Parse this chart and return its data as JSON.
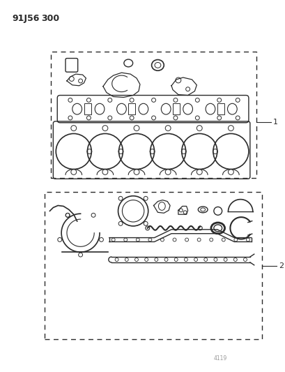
{
  "title_part1": "91J56",
  "title_part2": "300",
  "background_color": "#ffffff",
  "line_color": "#2a2a2a",
  "label1": "1",
  "label2": "2",
  "fig_width": 4.1,
  "fig_height": 5.33,
  "dpi": 100
}
